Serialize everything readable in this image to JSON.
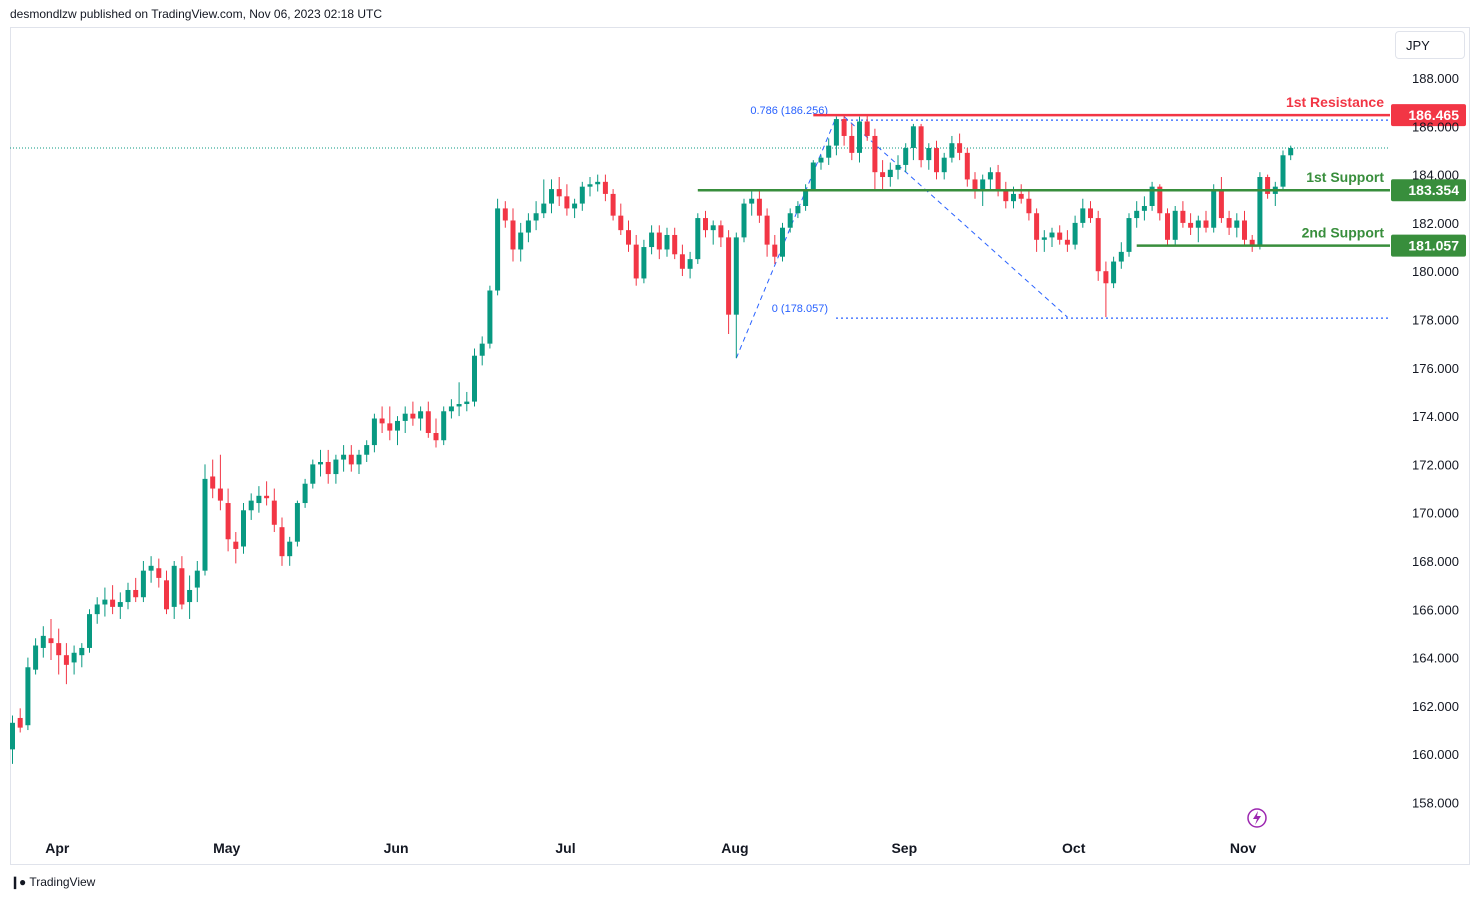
{
  "header": {
    "published": "desmondlzw published on TradingView.com, Nov 06, 2023 02:18 UTC"
  },
  "footer": {
    "brand": "TradingView",
    "logo": "tv-logo-icon"
  },
  "toolbar": {
    "currency": "JPY"
  },
  "colors": {
    "up": "#089981",
    "down": "#f23645",
    "resistance": "#f23645",
    "support": "#388e3c",
    "fib": "#2962ff"
  },
  "chart_data": {
    "type": "candlestick",
    "yticks": [
      "188.000",
      "186.000",
      "184.000",
      "182.000",
      "180.000",
      "178.000",
      "176.000",
      "174.000",
      "172.000",
      "170.000",
      "168.000",
      "166.000",
      "164.000",
      "162.000",
      "160.000",
      "158.000"
    ],
    "ylim": [
      157,
      189
    ],
    "xticks": [
      {
        "label": "Apr",
        "index": 4
      },
      {
        "label": "May",
        "index": 26
      },
      {
        "label": "Jun",
        "index": 48
      },
      {
        "label": "Jul",
        "index": 70
      },
      {
        "label": "Aug",
        "index": 92
      },
      {
        "label": "Sep",
        "index": 114
      },
      {
        "label": "Oct",
        "index": 136
      },
      {
        "label": "Nov",
        "index": 158
      }
    ],
    "current_price": 185.1,
    "levels": [
      {
        "label": "1st Resistance",
        "value": "186.465",
        "price": 186.465,
        "kind": "resistance",
        "start_index": 104
      },
      {
        "label": "1st Support",
        "value": "183.354",
        "price": 183.354,
        "kind": "support",
        "start_index": 89
      },
      {
        "label": "2nd Support",
        "value": "181.057",
        "price": 181.057,
        "kind": "support",
        "start_index": 146
      }
    ],
    "fib": [
      {
        "label": "0.786 (186.256)",
        "price": 186.256
      },
      {
        "label": "0 (178.057)",
        "price": 178.057
      }
    ],
    "candles": [
      [
        160.2,
        161.6,
        159.6,
        161.3
      ],
      [
        161.5,
        161.9,
        160.9,
        161.1
      ],
      [
        161.2,
        164.0,
        161.0,
        163.6
      ],
      [
        163.5,
        164.8,
        163.3,
        164.5
      ],
      [
        164.4,
        165.3,
        164.0,
        164.9
      ],
      [
        164.8,
        165.6,
        163.9,
        164.6
      ],
      [
        164.6,
        165.2,
        163.3,
        164.1
      ],
      [
        164.1,
        164.6,
        162.9,
        163.7
      ],
      [
        163.8,
        164.5,
        163.3,
        164.2
      ],
      [
        164.1,
        164.6,
        163.6,
        164.4
      ],
      [
        164.4,
        166.0,
        164.2,
        165.8
      ],
      [
        165.8,
        166.5,
        165.4,
        166.2
      ],
      [
        166.2,
        166.9,
        165.7,
        166.4
      ],
      [
        166.4,
        167.0,
        165.8,
        166.1
      ],
      [
        166.1,
        166.7,
        165.6,
        166.3
      ],
      [
        166.3,
        167.1,
        166.0,
        166.8
      ],
      [
        166.8,
        167.3,
        166.3,
        166.5
      ],
      [
        166.5,
        168.0,
        166.3,
        167.6
      ],
      [
        167.6,
        168.2,
        167.1,
        167.8
      ],
      [
        167.7,
        168.1,
        166.9,
        167.3
      ],
      [
        167.2,
        167.6,
        165.8,
        166.0
      ],
      [
        166.1,
        168.0,
        165.6,
        167.8
      ],
      [
        167.7,
        168.2,
        166.0,
        166.2
      ],
      [
        166.3,
        167.4,
        165.6,
        166.8
      ],
      [
        166.9,
        168.0,
        166.3,
        167.6
      ],
      [
        167.6,
        172.0,
        167.4,
        171.4
      ],
      [
        171.5,
        172.2,
        170.6,
        171.0
      ],
      [
        171.0,
        172.4,
        170.1,
        170.5
      ],
      [
        170.4,
        171.0,
        168.4,
        168.9
      ],
      [
        168.8,
        169.2,
        167.9,
        168.5
      ],
      [
        168.6,
        170.4,
        168.3,
        170.1
      ],
      [
        170.1,
        170.8,
        169.7,
        170.5
      ],
      [
        170.4,
        171.1,
        170.0,
        170.7
      ],
      [
        170.7,
        171.3,
        170.3,
        170.6
      ],
      [
        170.5,
        171.0,
        169.2,
        169.5
      ],
      [
        169.4,
        169.8,
        167.8,
        168.2
      ],
      [
        168.2,
        169.0,
        167.8,
        168.8
      ],
      [
        168.8,
        170.5,
        168.6,
        170.4
      ],
      [
        170.4,
        171.4,
        170.2,
        171.2
      ],
      [
        171.2,
        172.2,
        171.0,
        172.0
      ],
      [
        172.0,
        172.6,
        171.5,
        172.1
      ],
      [
        172.1,
        172.6,
        171.2,
        171.6
      ],
      [
        171.6,
        172.4,
        171.2,
        172.2
      ],
      [
        172.2,
        172.8,
        171.7,
        172.4
      ],
      [
        172.4,
        172.8,
        171.7,
        172.0
      ],
      [
        172.0,
        172.6,
        171.6,
        172.4
      ],
      [
        172.4,
        173.0,
        172.1,
        172.8
      ],
      [
        172.8,
        174.1,
        172.5,
        173.9
      ],
      [
        173.9,
        174.4,
        173.3,
        173.7
      ],
      [
        173.7,
        174.4,
        173.0,
        173.4
      ],
      [
        173.4,
        174.0,
        172.8,
        173.8
      ],
      [
        173.8,
        174.4,
        173.3,
        174.1
      ],
      [
        174.1,
        174.6,
        173.6,
        173.9
      ],
      [
        173.9,
        174.4,
        173.4,
        174.2
      ],
      [
        174.2,
        174.6,
        173.1,
        173.3
      ],
      [
        173.3,
        173.9,
        172.7,
        173.0
      ],
      [
        173.0,
        174.4,
        172.8,
        174.2
      ],
      [
        174.2,
        174.7,
        173.9,
        174.4
      ],
      [
        174.4,
        175.4,
        174.0,
        174.5
      ],
      [
        174.5,
        175.0,
        174.2,
        174.6
      ],
      [
        174.6,
        176.8,
        174.4,
        176.5
      ],
      [
        176.5,
        177.3,
        176.1,
        177.0
      ],
      [
        177.0,
        179.4,
        176.8,
        179.2
      ],
      [
        179.2,
        183.0,
        179.0,
        182.6
      ],
      [
        182.6,
        182.9,
        181.8,
        182.1
      ],
      [
        182.1,
        182.6,
        180.4,
        180.9
      ],
      [
        180.9,
        182.0,
        180.4,
        181.6
      ],
      [
        181.6,
        182.4,
        181.2,
        182.1
      ],
      [
        182.1,
        182.9,
        181.7,
        182.4
      ],
      [
        182.4,
        183.8,
        182.2,
        182.8
      ],
      [
        182.8,
        183.8,
        182.4,
        183.4
      ],
      [
        183.4,
        183.9,
        182.7,
        183.1
      ],
      [
        183.1,
        183.6,
        182.3,
        182.6
      ],
      [
        182.6,
        183.0,
        182.2,
        182.8
      ],
      [
        182.8,
        183.7,
        182.5,
        183.5
      ],
      [
        183.5,
        183.9,
        183.1,
        183.6
      ],
      [
        183.6,
        184.0,
        183.3,
        183.7
      ],
      [
        183.7,
        184.0,
        182.9,
        183.2
      ],
      [
        183.2,
        183.4,
        182.1,
        182.3
      ],
      [
        182.3,
        182.8,
        181.5,
        181.7
      ],
      [
        181.7,
        182.1,
        180.8,
        181.1
      ],
      [
        181.1,
        181.5,
        179.4,
        179.7
      ],
      [
        179.7,
        181.3,
        179.5,
        181.0
      ],
      [
        181.0,
        181.9,
        180.7,
        181.6
      ],
      [
        181.6,
        181.9,
        180.5,
        180.9
      ],
      [
        180.9,
        181.8,
        180.6,
        181.5
      ],
      [
        181.5,
        181.8,
        180.5,
        180.7
      ],
      [
        180.7,
        181.1,
        179.8,
        180.1
      ],
      [
        180.1,
        180.8,
        179.7,
        180.5
      ],
      [
        180.5,
        182.4,
        180.3,
        182.2
      ],
      [
        182.2,
        182.5,
        181.4,
        181.7
      ],
      [
        181.7,
        182.1,
        181.1,
        181.9
      ],
      [
        181.9,
        182.1,
        181.0,
        181.4
      ],
      [
        181.4,
        181.7,
        177.4,
        178.2
      ],
      [
        178.2,
        181.6,
        176.4,
        181.4
      ],
      [
        181.4,
        183.0,
        181.2,
        182.8
      ],
      [
        182.8,
        183.3,
        182.3,
        183.0
      ],
      [
        183.0,
        183.4,
        182.0,
        182.3
      ],
      [
        182.3,
        182.6,
        180.6,
        181.1
      ],
      [
        181.1,
        181.5,
        180.3,
        180.6
      ],
      [
        180.6,
        182.0,
        180.4,
        181.8
      ],
      [
        181.8,
        182.6,
        181.6,
        182.4
      ],
      [
        182.4,
        182.9,
        182.2,
        182.7
      ],
      [
        182.7,
        183.6,
        182.5,
        183.4
      ],
      [
        183.4,
        184.6,
        183.3,
        184.5
      ],
      [
        184.5,
        184.8,
        184.2,
        184.7
      ],
      [
        184.7,
        185.5,
        184.4,
        185.2
      ],
      [
        185.2,
        186.4,
        184.8,
        186.3
      ],
      [
        186.3,
        186.5,
        185.2,
        185.6
      ],
      [
        185.6,
        186.1,
        184.6,
        184.9
      ],
      [
        184.9,
        186.4,
        184.5,
        186.2
      ],
      [
        186.2,
        186.5,
        185.4,
        185.6
      ],
      [
        185.6,
        185.9,
        183.3,
        184.1
      ],
      [
        184.1,
        184.6,
        183.4,
        183.9
      ],
      [
        183.9,
        184.5,
        183.5,
        184.2
      ],
      [
        184.2,
        184.8,
        183.8,
        184.4
      ],
      [
        184.4,
        185.3,
        184.1,
        185.1
      ],
      [
        185.1,
        186.1,
        184.6,
        186.0
      ],
      [
        186.0,
        186.1,
        184.3,
        184.6
      ],
      [
        184.6,
        185.3,
        184.2,
        185.1
      ],
      [
        185.1,
        185.4,
        183.8,
        184.1
      ],
      [
        184.1,
        184.9,
        183.8,
        184.7
      ],
      [
        184.7,
        185.6,
        184.5,
        185.3
      ],
      [
        185.3,
        185.7,
        184.6,
        184.9
      ],
      [
        184.9,
        185.1,
        183.5,
        183.8
      ],
      [
        183.8,
        184.1,
        183.0,
        183.3
      ],
      [
        183.3,
        184.0,
        182.7,
        183.8
      ],
      [
        183.8,
        184.3,
        183.3,
        184.1
      ],
      [
        184.1,
        184.4,
        183.1,
        183.3
      ],
      [
        183.3,
        183.7,
        182.6,
        182.9
      ],
      [
        182.9,
        183.5,
        182.6,
        183.2
      ],
      [
        183.2,
        183.6,
        182.8,
        183.0
      ],
      [
        183.0,
        183.4,
        182.1,
        182.4
      ],
      [
        182.4,
        182.6,
        180.8,
        181.3
      ],
      [
        181.3,
        181.7,
        180.8,
        181.4
      ],
      [
        181.4,
        181.8,
        181.0,
        181.6
      ],
      [
        181.6,
        181.9,
        181.1,
        181.3
      ],
      [
        181.3,
        181.7,
        180.8,
        181.1
      ],
      [
        181.1,
        182.3,
        180.9,
        182.0
      ],
      [
        182.0,
        183.0,
        181.8,
        182.6
      ],
      [
        182.6,
        182.9,
        182.0,
        182.2
      ],
      [
        182.2,
        182.5,
        179.6,
        180.0
      ],
      [
        180.0,
        180.4,
        178.1,
        179.5
      ],
      [
        179.5,
        180.6,
        179.3,
        180.4
      ],
      [
        180.4,
        181.2,
        180.1,
        180.8
      ],
      [
        180.8,
        182.4,
        180.6,
        182.2
      ],
      [
        182.2,
        182.9,
        181.8,
        182.5
      ],
      [
        182.5,
        183.1,
        182.1,
        182.7
      ],
      [
        182.7,
        183.7,
        182.5,
        183.5
      ],
      [
        183.5,
        183.6,
        182.1,
        182.4
      ],
      [
        182.4,
        182.6,
        181.1,
        181.3
      ],
      [
        181.3,
        182.7,
        181.1,
        182.5
      ],
      [
        182.5,
        182.9,
        181.8,
        182.0
      ],
      [
        182.0,
        182.4,
        181.5,
        181.8
      ],
      [
        181.8,
        182.3,
        181.2,
        182.1
      ],
      [
        182.1,
        182.5,
        181.6,
        181.8
      ],
      [
        181.8,
        183.6,
        181.6,
        183.3
      ],
      [
        183.3,
        183.9,
        182.0,
        182.2
      ],
      [
        182.2,
        182.5,
        181.5,
        181.8
      ],
      [
        181.8,
        182.4,
        181.4,
        182.1
      ],
      [
        182.1,
        182.5,
        181.1,
        181.3
      ],
      [
        181.3,
        181.5,
        180.8,
        181.1
      ],
      [
        181.1,
        184.1,
        180.9,
        183.9
      ],
      [
        183.9,
        184.0,
        183.0,
        183.2
      ],
      [
        183.2,
        183.7,
        182.7,
        183.5
      ],
      [
        183.5,
        185.0,
        183.3,
        184.8
      ],
      [
        184.8,
        185.2,
        184.6,
        185.1
      ]
    ]
  }
}
